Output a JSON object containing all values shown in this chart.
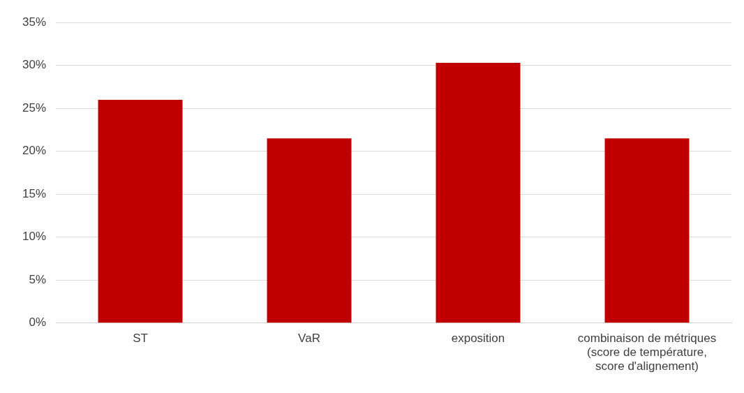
{
  "chart_data": {
    "type": "bar",
    "categories": [
      "ST",
      "VaR",
      "exposition",
      "combinaison de métriques (score de température, score d'alignement)"
    ],
    "values": [
      26,
      21.5,
      30.3,
      21.5
    ],
    "color": "#c00000",
    "ylim": [
      0,
      35
    ],
    "yticks": [
      {
        "value": 0,
        "label": "0%"
      },
      {
        "value": 5,
        "label": "5%"
      },
      {
        "value": 10,
        "label": "10%"
      },
      {
        "value": 15,
        "label": "15%"
      },
      {
        "value": 20,
        "label": "20%"
      },
      {
        "value": 25,
        "label": "25%"
      },
      {
        "value": 30,
        "label": "30%"
      },
      {
        "value": 35,
        "label": "35%"
      }
    ],
    "grid": "y",
    "legend": false
  }
}
